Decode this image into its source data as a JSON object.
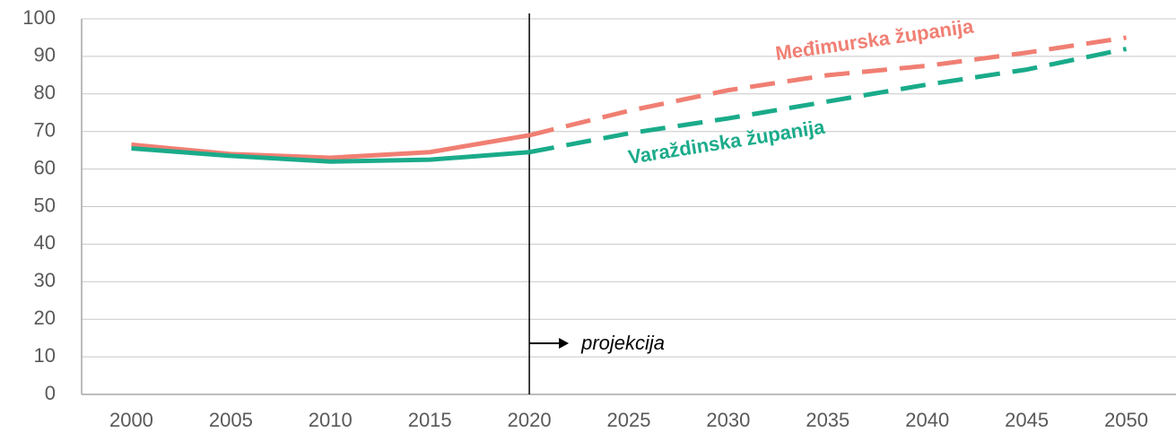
{
  "chart_data": {
    "type": "line",
    "x": [
      2000,
      2005,
      2010,
      2015,
      2020,
      2025,
      2030,
      2035,
      2040,
      2045,
      2050
    ],
    "series": [
      {
        "name": "Međimurska županija",
        "color": "#f07f73",
        "values": [
          66.5,
          64,
          63,
          64.5,
          69,
          75.5,
          81,
          85,
          87.5,
          91,
          95
        ]
      },
      {
        "name": "Varaždinska županija",
        "color": "#1aab8a",
        "values": [
          65.5,
          63.5,
          62,
          62.5,
          64.5,
          69.5,
          73.5,
          78,
          82.5,
          86.5,
          92
        ]
      }
    ],
    "xlim": [
      1997.5,
      2052.5
    ],
    "xticks": [
      2000,
      2005,
      2010,
      2015,
      2020,
      2025,
      2030,
      2035,
      2040,
      2045,
      2050
    ],
    "ylim": [
      0,
      100
    ],
    "yticks": [
      0,
      10,
      20,
      30,
      40,
      50,
      60,
      70,
      80,
      90,
      100
    ],
    "grid": true,
    "annotation": {
      "text": "projekcija",
      "x": 2020
    }
  }
}
